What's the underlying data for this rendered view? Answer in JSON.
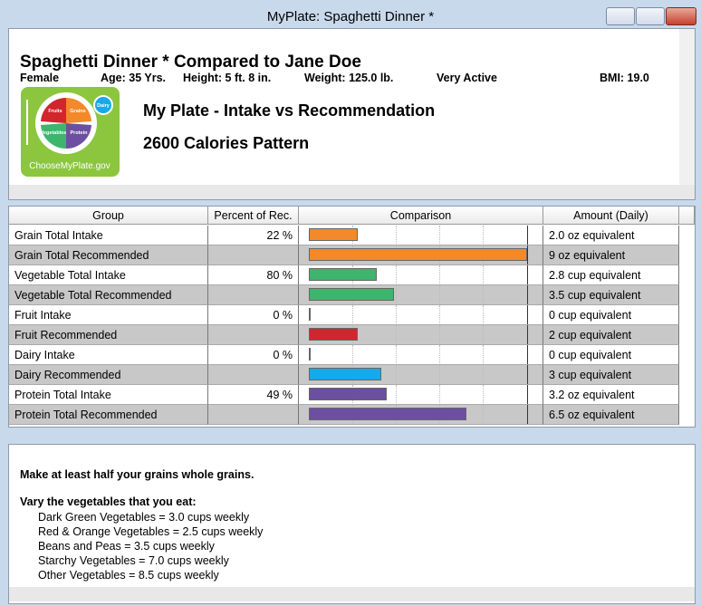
{
  "window": {
    "title": "MyPlate: Spaghetti Dinner *"
  },
  "header": {
    "title": "Spaghetti Dinner * Compared to Jane Doe",
    "info": [
      "Female",
      "Age: 35 Yrs.",
      "Height: 5 ft. 8 in.",
      "Weight: 125.0 lb.",
      "Very Active",
      "BMI: 19.0"
    ],
    "heading": "My Plate - Intake vs Recommendation",
    "pattern": "2600 Calories Pattern",
    "logo": {
      "fruits": "Fruits",
      "grains": "Grains",
      "vegetables": "Vegetables",
      "protein": "Protein",
      "dairy": "Dairy",
      "site": "ChooseMyPlate.gov"
    }
  },
  "table": {
    "columns": [
      "Group",
      "Percent of Rec.",
      "Comparison",
      "Amount (Daily)"
    ],
    "rows": [
      {
        "group": "Grain Total Intake",
        "percent": "22 %",
        "amount": {
          "value": 2.0,
          "label": "2.0 oz equivalent"
        },
        "color": "#f3892a"
      },
      {
        "group": "Grain Total Recommended",
        "amount": {
          "value": 9,
          "label": "9 oz equivalent"
        },
        "color": "#f3892a"
      },
      {
        "group": "Vegetable Total Intake",
        "percent": "80 %",
        "amount": {
          "value": 2.8,
          "label": "2.8 cup equivalent"
        },
        "color": "#3db56c"
      },
      {
        "group": "Vegetable Total Recommended",
        "amount": {
          "value": 3.5,
          "label": "3.5 cup equivalent"
        },
        "color": "#3db56c"
      },
      {
        "group": "Fruit Intake",
        "percent": "0 %",
        "amount": {
          "value": 0,
          "label": "0 cup equivalent"
        },
        "color": "#d2252d"
      },
      {
        "group": "Fruit Recommended",
        "amount": {
          "value": 2,
          "label": "2 cup equivalent"
        },
        "color": "#d2252d"
      },
      {
        "group": "Dairy Intake",
        "percent": "0 %",
        "amount": {
          "value": 0,
          "label": "0 cup equivalent"
        },
        "color": "#19a8e8"
      },
      {
        "group": "Dairy Recommended",
        "amount": {
          "value": 3,
          "label": "3 cup equivalent"
        },
        "color": "#19a8e8"
      },
      {
        "group": "Protein Total Intake",
        "percent": "49 %",
        "amount": {
          "value": 3.2,
          "label": "3.2 oz equivalent"
        },
        "color": "#6d4fa1"
      },
      {
        "group": "Protein Total Recommended",
        "amount": {
          "value": 6.5,
          "label": "6.5 oz equivalent"
        },
        "color": "#6d4fa1"
      }
    ]
  },
  "notes": {
    "grains": "Make at least half your grains whole grains.",
    "vegetables": {
      "heading": "Vary the vegetables that you eat:",
      "items": [
        "Dark Green Vegetables = 3.0 cups weekly",
        "Red & Orange Vegetables = 2.5 cups weekly",
        "Beans and Peas = 3.5 cups weekly",
        "Starchy Vegetables = 7.0 cups weekly",
        "Other Vegetables = 8.5 cups weekly"
      ]
    }
  }
}
